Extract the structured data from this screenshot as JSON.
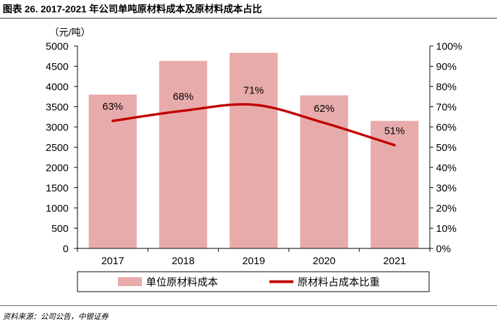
{
  "chart_data": {
    "type": "bar",
    "title": "图表 26. 2017-2021 年公司单吨原材料成本及原材料成本占比",
    "categories": [
      "2017",
      "2018",
      "2019",
      "2020",
      "2021"
    ],
    "series": [
      {
        "name": "单位原材料成本",
        "type": "bar",
        "secondary_axis": false,
        "values": [
          3800,
          4630,
          4830,
          3780,
          3150
        ],
        "color": "#E8ABAB"
      },
      {
        "name": "原材料占成本比重",
        "type": "line",
        "secondary_axis": true,
        "smooth": true,
        "values": [
          63,
          68,
          71,
          62,
          51
        ],
        "labels": [
          "63%",
          "68%",
          "71%",
          "62%",
          "51%"
        ],
        "color": "#C00000"
      }
    ],
    "left_axis": {
      "label": "（元/吨）",
      "min": 0,
      "max": 5000,
      "step": 500,
      "ticks": [
        "0",
        "500",
        "1000",
        "1500",
        "2000",
        "2500",
        "3000",
        "3500",
        "4000",
        "4500",
        "5000"
      ]
    },
    "right_axis": {
      "min": 0,
      "max": 100,
      "step": 10,
      "ticks": [
        "0%",
        "10%",
        "20%",
        "30%",
        "40%",
        "50%",
        "60%",
        "70%",
        "80%",
        "90%",
        "100%"
      ]
    },
    "grid": false,
    "legend_position": "bottom"
  },
  "footer": {
    "source": "资料来源：公司公告，中银证券"
  }
}
